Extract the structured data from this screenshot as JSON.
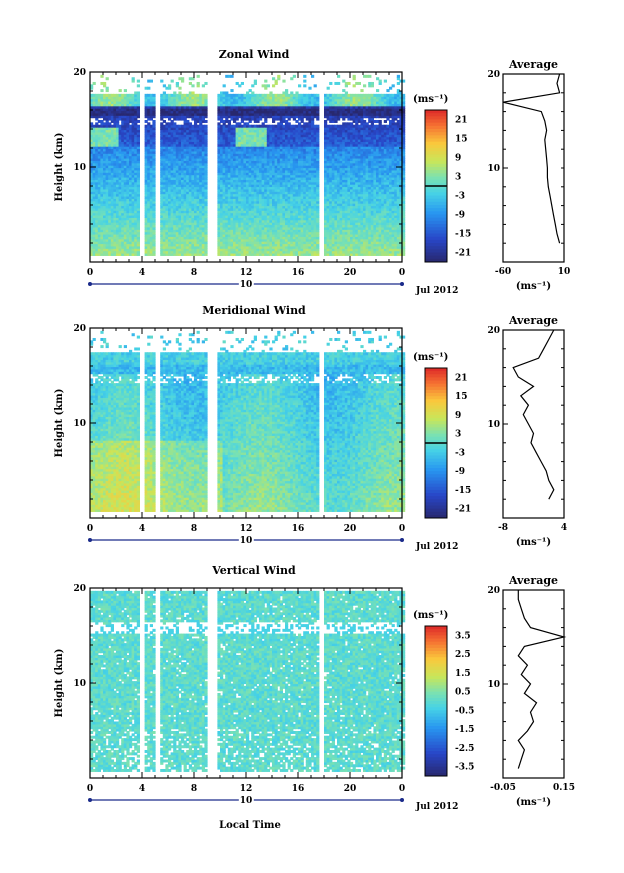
{
  "chart_data": [
    {
      "type": "heatmap",
      "title": "Zonal Wind",
      "ylabel": "Height (km)",
      "xlim": [
        0,
        24
      ],
      "ylim": [
        0,
        20
      ],
      "x_ticks": [
        "0",
        "4",
        "8",
        "12",
        "16",
        "20",
        "0"
      ],
      "y_ticks": [
        "20",
        "10"
      ],
      "date_label": "10",
      "month_label": "Jul 2012",
      "colorbar": {
        "unit": "(ms⁻¹)",
        "min": -24,
        "max": 24,
        "ticks": [
          "21",
          "15",
          "9",
          "3",
          "-3",
          "-9",
          "-15",
          "-21"
        ],
        "zero_line": true
      },
      "gaps_hours": [
        [
          3.8,
          4.2
        ],
        [
          5.0,
          5.5
        ],
        [
          9.1,
          9.7
        ],
        [
          17.5,
          17.9
        ]
      ],
      "profile": {
        "title": "Average",
        "xlabel": "(ms⁻¹)",
        "x_ticks": [
          "-60",
          "10"
        ],
        "xlim": [
          -60,
          10
        ],
        "y_ticks": [
          "20",
          "10"
        ],
        "height_km": [
          2,
          3,
          4,
          5,
          6,
          7,
          8,
          9,
          10,
          11,
          12,
          13,
          14,
          15,
          16,
          17,
          18,
          19,
          20
        ],
        "values": [
          5,
          2,
          0,
          -2,
          -4,
          -6,
          -8,
          -9,
          -9,
          -10,
          -11,
          -12,
          -10,
          -12,
          -16,
          -60,
          5,
          2,
          5
        ]
      }
    },
    {
      "type": "heatmap",
      "title": "Meridional Wind",
      "ylabel": "Height (km)",
      "xlim": [
        0,
        24
      ],
      "ylim": [
        0,
        20
      ],
      "x_ticks": [
        "0",
        "4",
        "8",
        "12",
        "16",
        "20",
        "0"
      ],
      "y_ticks": [
        "20",
        "10"
      ],
      "date_label": "10",
      "month_label": "Jul 2012",
      "colorbar": {
        "unit": "(ms⁻¹)",
        "min": -24,
        "max": 24,
        "ticks": [
          "21",
          "15",
          "9",
          "3",
          "-3",
          "-9",
          "-15",
          "-21"
        ],
        "zero_line": true
      },
      "gaps_hours": [
        [
          3.8,
          4.2
        ],
        [
          5.0,
          5.5
        ],
        [
          9.1,
          9.7
        ],
        [
          17.5,
          17.9
        ]
      ],
      "profile": {
        "title": "Average",
        "xlabel": "(ms⁻¹)",
        "x_ticks": [
          "-8",
          "4"
        ],
        "xlim": [
          -8,
          4
        ],
        "y_ticks": [
          "20",
          "10"
        ],
        "height_km": [
          2,
          3,
          4,
          5,
          6,
          7,
          8,
          9,
          10,
          11,
          12,
          13,
          14,
          15,
          16,
          17,
          18,
          19,
          20
        ],
        "values": [
          1,
          2,
          1,
          0.5,
          -0.5,
          -1.5,
          -2.5,
          -2,
          -3,
          -4,
          -3,
          -4.5,
          -2,
          -5,
          -6,
          -1,
          0,
          1,
          2
        ]
      }
    },
    {
      "type": "heatmap",
      "title": "Vertical Wind",
      "ylabel": "Height (km)",
      "xlabel": "Local Time",
      "xlim": [
        0,
        24
      ],
      "ylim": [
        0,
        20
      ],
      "x_ticks": [
        "0",
        "4",
        "8",
        "12",
        "16",
        "20",
        "0"
      ],
      "y_ticks": [
        "20",
        "10"
      ],
      "date_label": "10",
      "month_label": "Jul 2012",
      "colorbar": {
        "unit": "(ms⁻¹)",
        "min": -4,
        "max": 4,
        "ticks": [
          "3.5",
          "2.5",
          "1.5",
          "0.5",
          "-0.5",
          "-1.5",
          "-2.5",
          "-3.5"
        ],
        "zero_line": false
      },
      "gaps_hours": [
        [
          3.8,
          4.2
        ],
        [
          5.0,
          5.5
        ],
        [
          9.1,
          9.7
        ],
        [
          17.5,
          17.9
        ]
      ],
      "profile": {
        "title": "Average",
        "xlabel": "(ms⁻¹)",
        "x_ticks": [
          "-0.05",
          "0.15"
        ],
        "xlim": [
          -0.05,
          0.15
        ],
        "y_ticks": [
          "20",
          "10"
        ],
        "height_km": [
          1,
          2,
          3,
          4,
          5,
          6,
          7,
          8,
          9,
          10,
          11,
          12,
          13,
          14,
          15,
          16,
          17,
          18,
          19,
          20
        ],
        "values": [
          0.0,
          0.01,
          0.02,
          0.0,
          0.03,
          0.05,
          0.04,
          0.06,
          0.02,
          0.04,
          0.01,
          0.03,
          0.0,
          0.02,
          0.15,
          0.04,
          0.02,
          0.01,
          0.0,
          0.0
        ]
      }
    }
  ]
}
